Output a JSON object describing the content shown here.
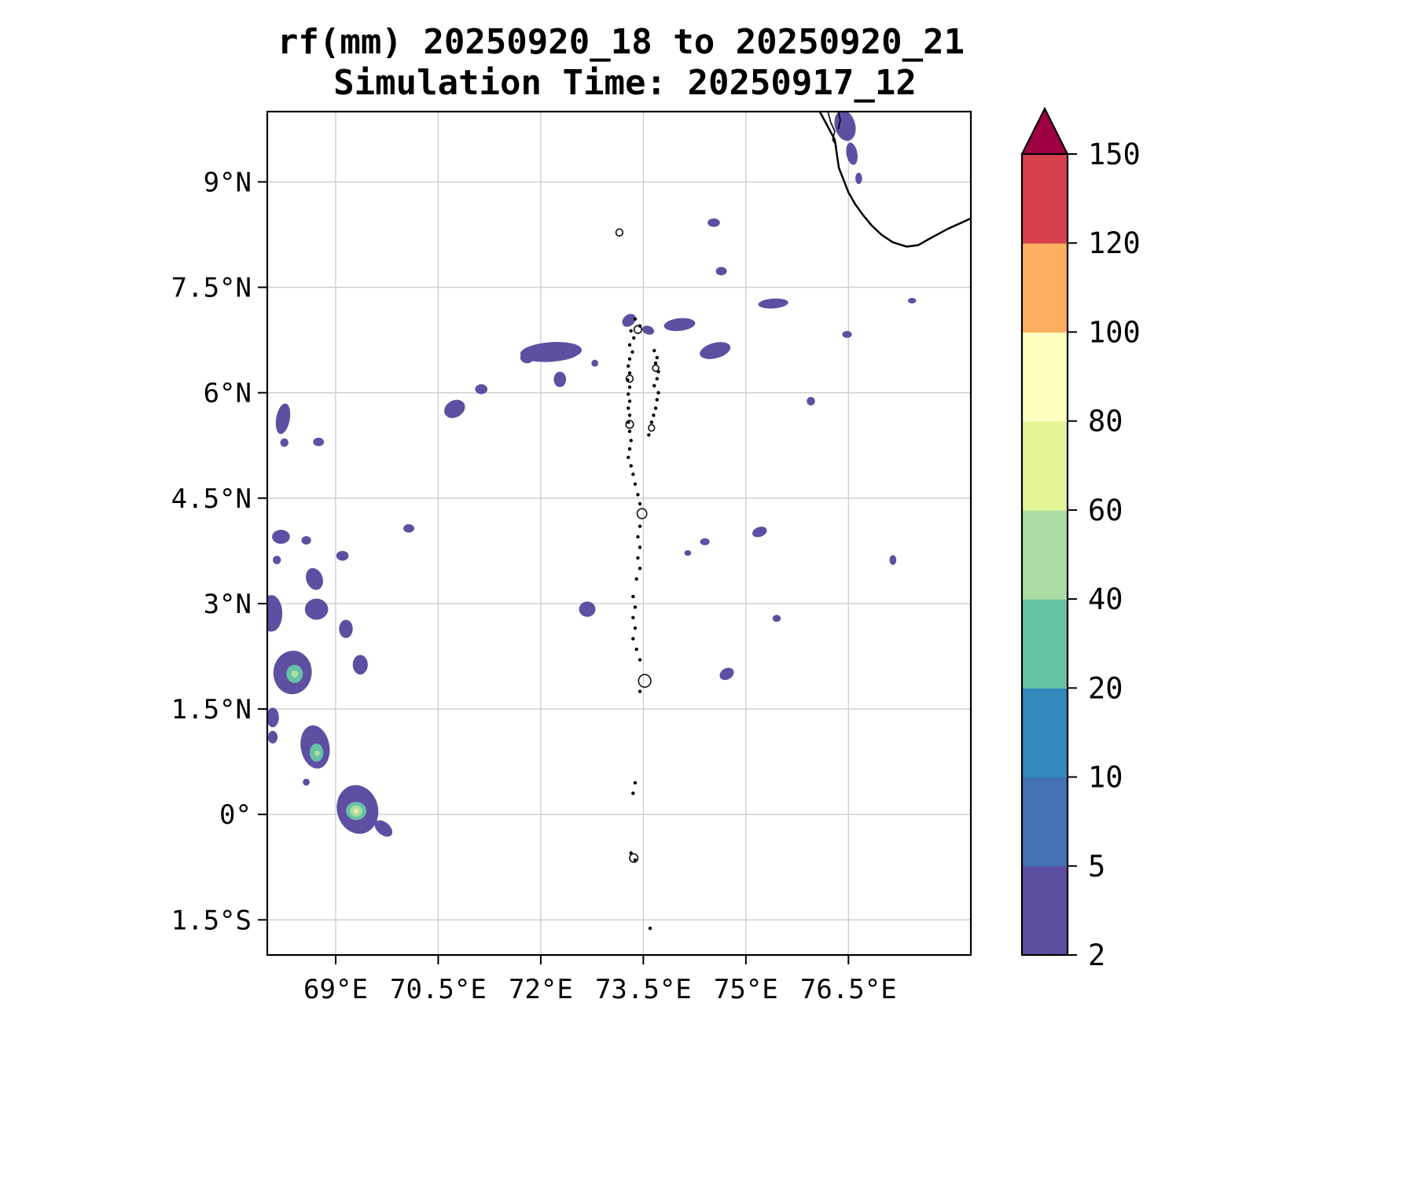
{
  "chart_data": {
    "type": "filled_contour_map",
    "title": "rf(mm) 20250920_18 to 20250920_21",
    "subtitle": "Simulation Time: 20250917_12",
    "variable": "rf",
    "units": "mm",
    "lon_min": 68.0,
    "lon_max": 78.29,
    "lat_min": -2.0,
    "lat_max": 10.0,
    "grid_color": "#cccccc",
    "x_ticks": [
      {
        "lon": 69.0,
        "label": "69°E"
      },
      {
        "lon": 70.5,
        "label": "70.5°E"
      },
      {
        "lon": 72.0,
        "label": "72°E"
      },
      {
        "lon": 73.5,
        "label": "73.5°E"
      },
      {
        "lon": 75.0,
        "label": "75°E"
      },
      {
        "lon": 76.5,
        "label": "76.5°E"
      }
    ],
    "y_ticks": [
      {
        "lat": 9.0,
        "label": "9°N"
      },
      {
        "lat": 7.5,
        "label": "7.5°N"
      },
      {
        "lat": 6.0,
        "label": "6°N"
      },
      {
        "lat": 4.5,
        "label": "4.5°N"
      },
      {
        "lat": 3.0,
        "label": "3°N"
      },
      {
        "lat": 1.5,
        "label": "1.5°N"
      },
      {
        "lat": 0.0,
        "label": "0°"
      },
      {
        "lat": -1.5,
        "label": "1.5°S"
      }
    ],
    "colorbar": {
      "levels": [
        2,
        5,
        10,
        20,
        40,
        60,
        80,
        100,
        120,
        150
      ],
      "tick_labels": [
        "2",
        "5",
        "10",
        "20",
        "40",
        "60",
        "80",
        "100",
        "120",
        "150"
      ],
      "band_colors": [
        "#5e4fa2",
        "#4272b3",
        "#3288bd",
        "#66c2a5",
        "#abdda4",
        "#e6f598",
        "#ffffbf",
        "#fdae61",
        "#d7414e"
      ],
      "over_color": "#9e0142"
    },
    "coastline": {
      "main": [
        [
          76.08,
          10.0
        ],
        [
          76.18,
          9.82
        ],
        [
          76.3,
          9.6
        ],
        [
          76.33,
          9.4
        ],
        [
          76.36,
          9.2
        ],
        [
          76.44,
          9.0
        ],
        [
          76.5,
          8.85
        ],
        [
          76.6,
          8.68
        ],
        [
          76.72,
          8.52
        ],
        [
          76.84,
          8.38
        ],
        [
          76.98,
          8.25
        ],
        [
          77.15,
          8.14
        ],
        [
          77.35,
          8.08
        ],
        [
          77.52,
          8.1
        ],
        [
          77.7,
          8.2
        ],
        [
          77.95,
          8.33
        ],
        [
          78.29,
          8.48
        ]
      ],
      "squiggles": [
        [
          [
            76.2,
            10.0
          ],
          [
            76.24,
            9.85
          ],
          [
            76.3,
            9.72
          ],
          [
            76.27,
            9.6
          ],
          [
            76.33,
            9.5
          ]
        ],
        [
          [
            76.35,
            10.0
          ],
          [
            76.38,
            9.88
          ],
          [
            76.35,
            9.75
          ]
        ]
      ]
    },
    "atoll_dots": [
      [
        73.38,
        7.05
      ],
      [
        73.45,
        6.95
      ],
      [
        73.32,
        6.88
      ],
      [
        73.36,
        6.78
      ],
      [
        73.3,
        6.68
      ],
      [
        73.34,
        6.58
      ],
      [
        73.66,
        6.6
      ],
      [
        73.3,
        6.48
      ],
      [
        73.7,
        6.5
      ],
      [
        73.28,
        6.38
      ],
      [
        73.68,
        6.42
      ],
      [
        73.3,
        6.28
      ],
      [
        73.72,
        6.3
      ],
      [
        73.27,
        6.18
      ],
      [
        73.7,
        6.2
      ],
      [
        73.3,
        6.08
      ],
      [
        73.66,
        6.1
      ],
      [
        73.28,
        5.98
      ],
      [
        73.72,
        6.0
      ],
      [
        73.3,
        5.88
      ],
      [
        73.7,
        5.9
      ],
      [
        73.28,
        5.78
      ],
      [
        73.68,
        5.78
      ],
      [
        73.3,
        5.68
      ],
      [
        73.65,
        5.68
      ],
      [
        73.28,
        5.58
      ],
      [
        73.62,
        5.58
      ],
      [
        73.3,
        5.45
      ],
      [
        73.32,
        5.32
      ],
      [
        73.58,
        5.4
      ],
      [
        73.3,
        5.2
      ],
      [
        73.28,
        5.08
      ],
      [
        73.32,
        4.96
      ],
      [
        73.35,
        4.84
      ],
      [
        73.38,
        4.7
      ],
      [
        73.42,
        4.55
      ],
      [
        73.45,
        4.42
      ],
      [
        73.45,
        4.1
      ],
      [
        73.42,
        3.95
      ],
      [
        73.45,
        3.8
      ],
      [
        73.42,
        3.65
      ],
      [
        73.45,
        3.5
      ],
      [
        73.4,
        3.35
      ],
      [
        73.35,
        3.1
      ],
      [
        73.38,
        2.95
      ],
      [
        73.35,
        2.8
      ],
      [
        73.38,
        2.65
      ],
      [
        73.35,
        2.5
      ],
      [
        73.4,
        2.35
      ],
      [
        73.45,
        2.2
      ],
      [
        73.45,
        1.75
      ],
      [
        73.38,
        0.45
      ],
      [
        73.35,
        0.3
      ],
      [
        73.32,
        -0.55
      ],
      [
        73.38,
        -0.65
      ],
      [
        73.6,
        -1.62
      ]
    ],
    "atoll_rings": [
      [
        73.42,
        6.9,
        0.055
      ],
      [
        73.3,
        6.2,
        0.05
      ],
      [
        73.68,
        6.35,
        0.045
      ],
      [
        73.3,
        5.55,
        0.055
      ],
      [
        73.62,
        5.5,
        0.045
      ],
      [
        73.48,
        4.28,
        0.07
      ],
      [
        73.52,
        1.9,
        0.09
      ],
      [
        73.36,
        -0.62,
        0.06
      ],
      [
        73.15,
        8.28,
        0.05
      ]
    ],
    "rain_cells": [
      [
        68.23,
        5.63,
        0.1,
        0.22,
        10,
        2
      ],
      [
        68.25,
        5.29,
        0.06,
        0.06,
        0,
        2
      ],
      [
        68.75,
        5.3,
        0.08,
        0.06,
        0,
        2
      ],
      [
        68.2,
        3.95,
        0.13,
        0.1,
        0,
        2
      ],
      [
        68.57,
        3.9,
        0.07,
        0.06,
        0,
        2
      ],
      [
        68.14,
        3.62,
        0.06,
        0.06,
        0,
        2
      ],
      [
        68.69,
        3.35,
        0.12,
        0.16,
        -20,
        2
      ],
      [
        68.06,
        2.86,
        0.16,
        0.26,
        0,
        2
      ],
      [
        68.72,
        2.92,
        0.17,
        0.15,
        0,
        2
      ],
      [
        69.15,
        2.64,
        0.1,
        0.13,
        0,
        2
      ],
      [
        69.1,
        3.68,
        0.09,
        0.07,
        0,
        2
      ],
      [
        68.37,
        2.02,
        0.28,
        0.31,
        5,
        2
      ],
      [
        68.4,
        2.0,
        0.12,
        0.13,
        0,
        20
      ],
      [
        68.4,
        2.0,
        0.05,
        0.05,
        0,
        40
      ],
      [
        69.36,
        2.13,
        0.11,
        0.14,
        0,
        2
      ],
      [
        68.08,
        1.38,
        0.09,
        0.14,
        0,
        2
      ],
      [
        68.08,
        1.1,
        0.07,
        0.09,
        0,
        2
      ],
      [
        68.7,
        0.96,
        0.21,
        0.31,
        -10,
        2
      ],
      [
        68.72,
        0.88,
        0.1,
        0.13,
        0,
        20
      ],
      [
        68.73,
        0.87,
        0.04,
        0.04,
        0,
        40
      ],
      [
        68.57,
        0.46,
        0.05,
        0.05,
        0,
        2
      ],
      [
        69.32,
        0.07,
        0.3,
        0.35,
        -15,
        2
      ],
      [
        69.7,
        -0.2,
        0.15,
        0.09,
        40,
        2
      ],
      [
        69.3,
        0.05,
        0.15,
        0.13,
        0,
        20
      ],
      [
        69.3,
        0.05,
        0.09,
        0.08,
        0,
        40
      ],
      [
        69.3,
        0.05,
        0.035,
        0.035,
        0,
        60
      ],
      [
        70.07,
        4.07,
        0.08,
        0.06,
        0,
        2
      ],
      [
        70.74,
        5.77,
        0.16,
        0.12,
        -30,
        2
      ],
      [
        71.13,
        6.05,
        0.09,
        0.07,
        0,
        2
      ],
      [
        72.15,
        6.58,
        0.45,
        0.14,
        -4,
        2
      ],
      [
        71.8,
        6.5,
        0.1,
        0.08,
        0,
        2
      ],
      [
        72.28,
        6.19,
        0.09,
        0.11,
        0,
        2
      ],
      [
        72.79,
        6.42,
        0.05,
        0.05,
        0,
        2
      ],
      [
        73.29,
        7.03,
        0.11,
        0.08,
        -40,
        2
      ],
      [
        73.57,
        6.89,
        0.09,
        0.06,
        20,
        2
      ],
      [
        74.03,
        6.97,
        0.23,
        0.09,
        -6,
        2
      ],
      [
        74.55,
        6.6,
        0.23,
        0.11,
        -15,
        2
      ],
      [
        75.4,
        7.27,
        0.22,
        0.07,
        -4,
        2
      ],
      [
        76.48,
        6.83,
        0.07,
        0.05,
        0,
        2
      ],
      [
        75.95,
        5.88,
        0.06,
        0.06,
        0,
        2
      ],
      [
        74.53,
        8.42,
        0.09,
        0.06,
        0,
        2
      ],
      [
        74.64,
        7.73,
        0.08,
        0.06,
        0,
        2
      ],
      [
        77.43,
        7.31,
        0.06,
        0.04,
        0,
        2
      ],
      [
        72.68,
        2.92,
        0.12,
        0.11,
        0,
        2
      ],
      [
        74.4,
        3.88,
        0.07,
        0.05,
        0,
        2
      ],
      [
        74.15,
        3.72,
        0.05,
        0.04,
        0,
        2
      ],
      [
        75.2,
        4.02,
        0.11,
        0.07,
        -20,
        2
      ],
      [
        74.72,
        2.0,
        0.11,
        0.08,
        -30,
        2
      ],
      [
        75.45,
        2.79,
        0.06,
        0.05,
        0,
        2
      ],
      [
        77.15,
        3.62,
        0.05,
        0.07,
        0,
        2
      ],
      [
        76.45,
        9.8,
        0.15,
        0.22,
        -15,
        2
      ],
      [
        76.55,
        9.4,
        0.08,
        0.16,
        -10,
        2
      ],
      [
        76.65,
        9.05,
        0.05,
        0.08,
        0,
        2
      ]
    ]
  }
}
